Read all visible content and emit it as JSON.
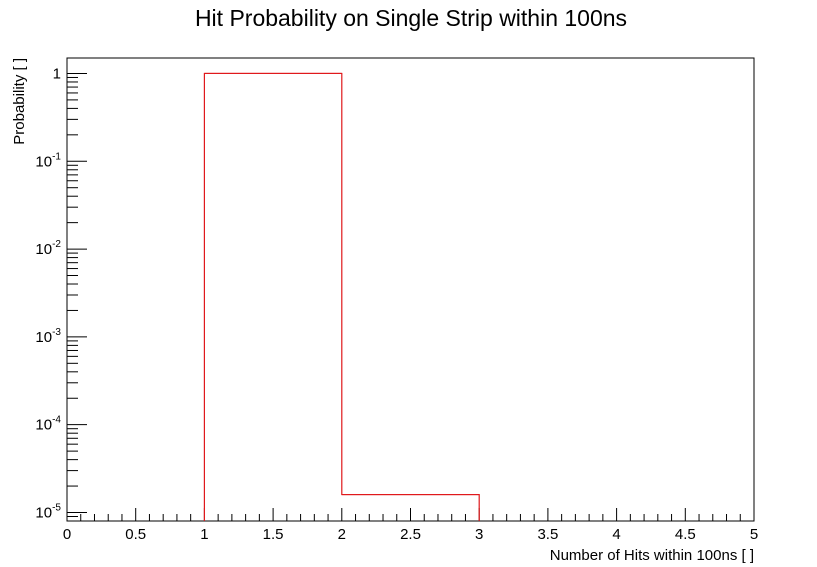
{
  "chart_data": {
    "type": "histogram",
    "title": "Hit Probability on Single Strip within 100ns",
    "xlabel": "Number of Hits within 100ns [ ]",
    "ylabel": "Probability [ ]",
    "xlim": [
      0,
      5
    ],
    "ylim": [
      8e-06,
      1.5
    ],
    "yscale": "log",
    "grid": false,
    "legend": "none",
    "x_ticks": [
      "0",
      "0.5",
      "1",
      "1.5",
      "2",
      "2.5",
      "3",
      "3.5",
      "4",
      "4.5",
      "5"
    ],
    "y_ticks": [
      {
        "base": "1",
        "exp": ""
      },
      {
        "base": "10",
        "exp": "-1"
      },
      {
        "base": "10",
        "exp": "-2"
      },
      {
        "base": "10",
        "exp": "-3"
      },
      {
        "base": "10",
        "exp": "-4"
      },
      {
        "base": "10",
        "exp": "-5"
      }
    ],
    "bins": [
      {
        "x_low": 1,
        "x_high": 2,
        "value": 1.0
      },
      {
        "x_low": 2,
        "x_high": 3,
        "value": 1.6e-05
      }
    ],
    "line_color": "#e0191c"
  }
}
